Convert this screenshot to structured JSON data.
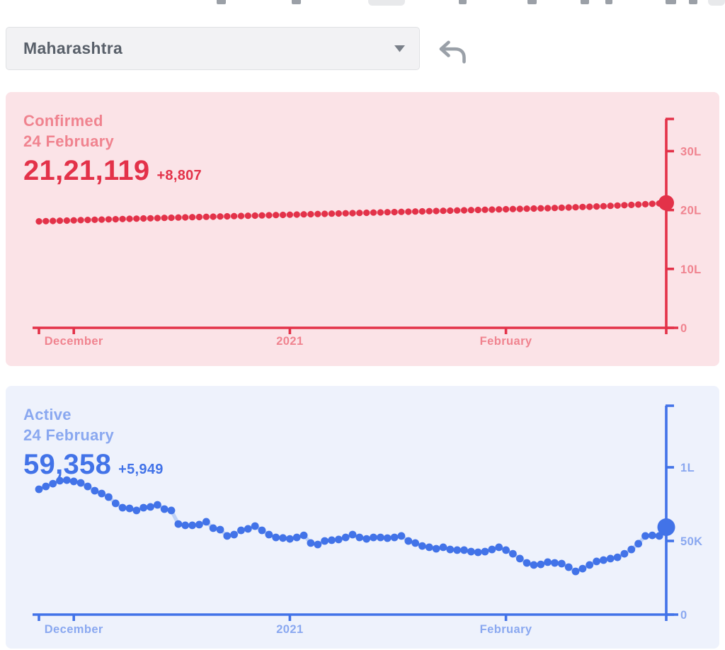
{
  "header": {
    "region_dropdown": {
      "value": "Maharashtra",
      "chevron_icon": "chevron-down"
    },
    "undo_button": {
      "icon": "undo-arrow"
    }
  },
  "chart_data": [
    {
      "type": "line",
      "title": "Confirmed",
      "date_label": "24 February",
      "value_display": "21,21,119",
      "delta_display": "+8,807",
      "ylim": [
        0,
        3546000
      ],
      "grid": false,
      "legend_position": "top-left",
      "yticks": [
        {
          "value": 0,
          "label": "0"
        },
        {
          "value": 1000000,
          "label": "10L"
        },
        {
          "value": 2000000,
          "label": "20L"
        },
        {
          "value": 3000000,
          "label": "30L"
        }
      ],
      "xticks": [
        {
          "index": 0,
          "label": ""
        },
        {
          "index": 5,
          "label": "December"
        },
        {
          "index": 36,
          "label": "2021"
        },
        {
          "index": 67,
          "label": "February"
        }
      ],
      "values": [
        1808399,
        1811700,
        1815000,
        1818300,
        1821600,
        1824900,
        1828200,
        1831500,
        1834800,
        1838100,
        1841300,
        1844500,
        1847600,
        1850700,
        1853800,
        1856900,
        1860000,
        1863100,
        1866200,
        1869250,
        1872300,
        1875350,
        1878400,
        1881450,
        1884500,
        1887500,
        1890500,
        1893500,
        1896500,
        1899500,
        1902500,
        1905500,
        1908500,
        1911500,
        1914500,
        1917500,
        1920500,
        1923500,
        1926500,
        1929500,
        1932500,
        1935500,
        1938500,
        1941500,
        1944500,
        1947500,
        1950500,
        1953500,
        1956500,
        1959500,
        1962500,
        1965500,
        1968500,
        1971500,
        1974500,
        1977500,
        1980500,
        1983500,
        1986500,
        1989500,
        1992500,
        1995500,
        1998500,
        2001500,
        2004500,
        2007500,
        2010500,
        2013500,
        2016500,
        2019500,
        2022500,
        2025500,
        2028700,
        2032000,
        2035500,
        2039200,
        2043100,
        2047200,
        2051500,
        2056000,
        2060700,
        2065600,
        2070700,
        2076000,
        2081500,
        2087200,
        2093100,
        2099200,
        2105500,
        2112312,
        2121119
      ],
      "colors": {
        "accent": "#e33249",
        "muted": "#f0838f",
        "background": "#fbe3e7",
        "connector": "#f2b0ba"
      }
    },
    {
      "type": "line",
      "title": "Active",
      "date_label": "24 February",
      "value_display": "59,358",
      "delta_display": "+5,949",
      "ylim": [
        0,
        141800
      ],
      "grid": false,
      "legend_position": "top-left",
      "yticks": [
        {
          "value": 0,
          "label": "0"
        },
        {
          "value": 50000,
          "label": "50K"
        },
        {
          "value": 100000,
          "label": "1L"
        }
      ],
      "xticks": [
        {
          "index": 0,
          "label": ""
        },
        {
          "index": 5,
          "label": "December"
        },
        {
          "index": 36,
          "label": "2021"
        },
        {
          "index": 67,
          "label": "February"
        }
      ],
      "values": [
        85100,
        87000,
        88900,
        90900,
        91300,
        90400,
        89400,
        87000,
        84100,
        82200,
        79800,
        75500,
        72600,
        72100,
        70700,
        72600,
        73100,
        74500,
        71600,
        70700,
        61500,
        60600,
        60600,
        61100,
        63000,
        58700,
        57700,
        53400,
        54300,
        57200,
        58200,
        60100,
        57200,
        54300,
        52400,
        52000,
        51400,
        52400,
        53800,
        48600,
        47600,
        50000,
        50500,
        51000,
        52400,
        54300,
        52400,
        51400,
        52400,
        52400,
        51900,
        52400,
        53400,
        50000,
        48600,
        46600,
        45700,
        44700,
        45700,
        44200,
        43800,
        43800,
        42800,
        42300,
        42800,
        44200,
        45700,
        43800,
        41300,
        38000,
        35100,
        33700,
        34100,
        35600,
        35100,
        34600,
        32200,
        29300,
        31200,
        33700,
        36100,
        37000,
        38000,
        38900,
        41300,
        44200,
        48100,
        53400,
        53800,
        53400,
        59358
      ],
      "colors": {
        "accent": "#4273e8",
        "muted": "#8aa8f0",
        "background": "#eef2fc",
        "connector": "#bed1f7"
      }
    }
  ]
}
